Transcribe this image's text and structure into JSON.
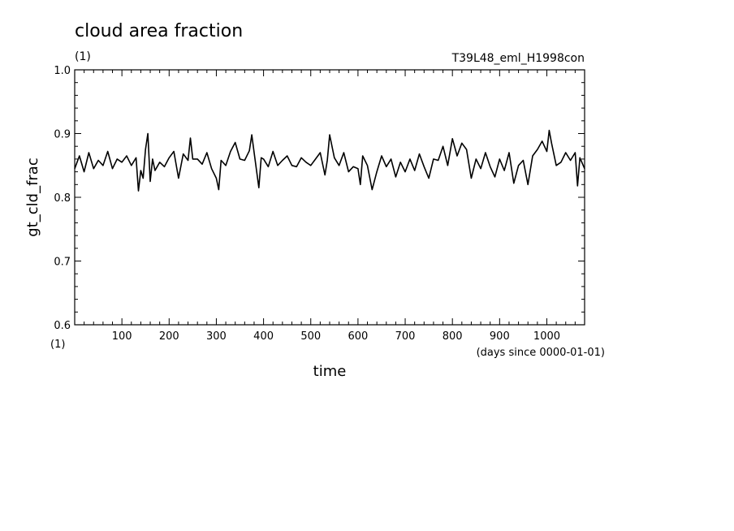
{
  "chart_data": {
    "type": "line",
    "title": "cloud area fraction",
    "title_unit": "(1)",
    "run_label": "T39L48_eml_H1998con",
    "xlabel": "time",
    "x_unit": "(days since 0000-01-01)",
    "ylabel": "gt_cld_frac",
    "y_unit": "(1)",
    "xlim": [
      0,
      1080
    ],
    "ylim": [
      0.6,
      1.0
    ],
    "x_ticks": [
      100,
      200,
      300,
      400,
      500,
      600,
      700,
      800,
      900,
      1000
    ],
    "y_ticks": [
      "0.6",
      "0.7",
      "0.8",
      "0.9",
      "1.0"
    ],
    "grid": false,
    "line_color": "#000000",
    "series": [
      {
        "x": [
          0,
          10,
          20,
          30,
          40,
          50,
          60,
          70,
          80,
          90,
          100,
          110,
          120,
          130,
          135,
          140,
          145,
          150,
          155,
          160,
          165,
          170,
          180,
          190,
          200,
          210,
          220,
          230,
          240,
          245,
          250,
          260,
          270,
          280,
          290,
          300,
          305,
          310,
          320,
          330,
          340,
          350,
          360,
          370,
          375,
          380,
          390,
          395,
          400,
          410,
          420,
          430,
          440,
          450,
          460,
          470,
          480,
          490,
          500,
          510,
          520,
          530,
          535,
          540,
          550,
          560,
          570,
          580,
          590,
          600,
          605,
          610,
          620,
          630,
          640,
          650,
          660,
          670,
          680,
          690,
          700,
          710,
          720,
          730,
          740,
          750,
          760,
          770,
          780,
          790,
          800,
          810,
          820,
          830,
          840,
          850,
          860,
          870,
          880,
          890,
          900,
          910,
          920,
          930,
          940,
          950,
          960,
          970,
          980,
          990,
          1000,
          1005,
          1010,
          1020,
          1030,
          1040,
          1050,
          1060,
          1065,
          1070,
          1080
        ],
        "values": [
          0.845,
          0.865,
          0.84,
          0.87,
          0.845,
          0.858,
          0.85,
          0.872,
          0.845,
          0.86,
          0.855,
          0.865,
          0.85,
          0.862,
          0.81,
          0.842,
          0.83,
          0.875,
          0.9,
          0.825,
          0.86,
          0.842,
          0.855,
          0.848,
          0.862,
          0.872,
          0.83,
          0.868,
          0.858,
          0.893,
          0.86,
          0.86,
          0.852,
          0.87,
          0.845,
          0.83,
          0.812,
          0.858,
          0.85,
          0.872,
          0.886,
          0.86,
          0.858,
          0.873,
          0.898,
          0.87,
          0.815,
          0.862,
          0.86,
          0.848,
          0.872,
          0.85,
          0.858,
          0.865,
          0.85,
          0.848,
          0.862,
          0.855,
          0.85,
          0.86,
          0.87,
          0.835,
          0.858,
          0.898,
          0.862,
          0.85,
          0.87,
          0.84,
          0.848,
          0.845,
          0.82,
          0.865,
          0.85,
          0.812,
          0.84,
          0.865,
          0.848,
          0.86,
          0.832,
          0.855,
          0.84,
          0.86,
          0.842,
          0.868,
          0.848,
          0.83,
          0.86,
          0.858,
          0.88,
          0.85,
          0.892,
          0.865,
          0.885,
          0.875,
          0.83,
          0.86,
          0.845,
          0.87,
          0.848,
          0.832,
          0.86,
          0.842,
          0.87,
          0.822,
          0.85,
          0.858,
          0.82,
          0.865,
          0.875,
          0.888,
          0.872,
          0.905,
          0.885,
          0.85,
          0.855,
          0.87,
          0.858,
          0.87,
          0.818,
          0.862,
          0.845
        ]
      }
    ]
  }
}
